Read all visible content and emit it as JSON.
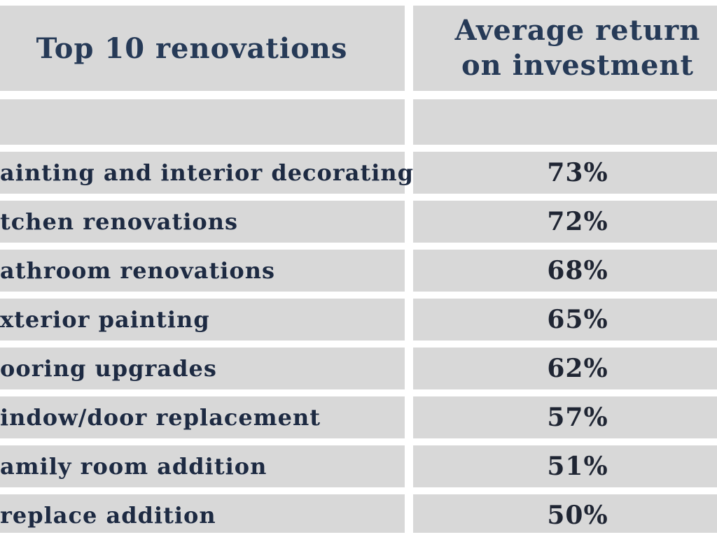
{
  "colors": {
    "page_background": "#ffffff",
    "cell_background": "#d8d8d8",
    "header_text": "#263a57",
    "label_text": "#1d2a42",
    "value_text": "#1f2533"
  },
  "table": {
    "header": {
      "col1": "Top 10 renovations",
      "col2_lines": [
        "Average return",
        "on investment"
      ]
    },
    "rows": [
      {
        "label": "ainting and interior decorating",
        "value": "73%"
      },
      {
        "label": "tchen renovations",
        "value": "72%"
      },
      {
        "label": "athroom renovations",
        "value": "68%"
      },
      {
        "label": "xterior painting",
        "value": "65%"
      },
      {
        "label": "ooring upgrades",
        "value": "62%"
      },
      {
        "label": "indow/door replacement",
        "value": "57%"
      },
      {
        "label": "amily room addition",
        "value": "51%"
      },
      {
        "label": "replace addition",
        "value": "50%"
      }
    ]
  }
}
